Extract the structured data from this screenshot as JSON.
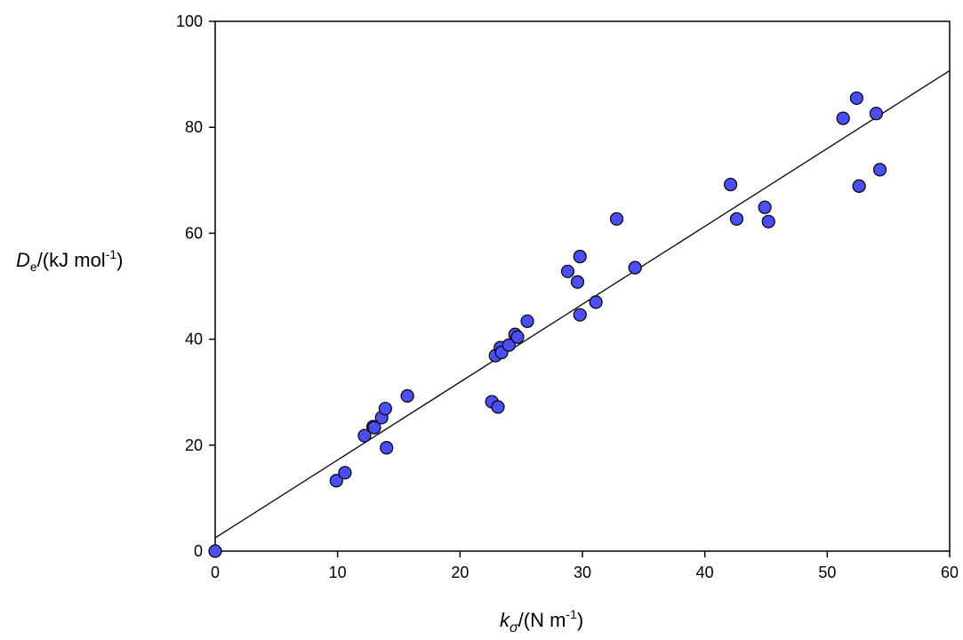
{
  "chart_data": {
    "type": "scatter",
    "title": "",
    "xlabel": {
      "symbol": "k",
      "subscript": "σ",
      "unit": "/(N m",
      "superscript": "-1",
      "close": ")"
    },
    "ylabel": {
      "symbol": "D",
      "subscript": "e",
      "unit": "/(kJ mol",
      "superscript": "-1",
      "close": ")"
    },
    "xlim": [
      0,
      60
    ],
    "ylim": [
      0,
      100
    ],
    "xticks": [
      0,
      10,
      20,
      30,
      40,
      50,
      60
    ],
    "yticks": [
      0,
      20,
      40,
      60,
      80,
      100
    ],
    "grid": false,
    "marker_color": "#4b4ef0",
    "marker_edge_color": "#000000",
    "series": [
      {
        "points": [
          {
            "x": 0.0,
            "y": 0.0
          },
          {
            "x": 9.9,
            "y": 13.3
          },
          {
            "x": 10.6,
            "y": 14.8
          },
          {
            "x": 12.2,
            "y": 21.8
          },
          {
            "x": 12.9,
            "y": 23.5
          },
          {
            "x": 13.0,
            "y": 23.3
          },
          {
            "x": 13.6,
            "y": 25.2
          },
          {
            "x": 13.9,
            "y": 26.9
          },
          {
            "x": 14.0,
            "y": 19.5
          },
          {
            "x": 15.7,
            "y": 29.3
          },
          {
            "x": 22.6,
            "y": 28.2
          },
          {
            "x": 22.9,
            "y": 36.9
          },
          {
            "x": 23.1,
            "y": 27.2
          },
          {
            "x": 23.3,
            "y": 38.4
          },
          {
            "x": 23.4,
            "y": 37.5
          },
          {
            "x": 24.0,
            "y": 38.9
          },
          {
            "x": 24.5,
            "y": 40.9
          },
          {
            "x": 24.7,
            "y": 40.4
          },
          {
            "x": 25.5,
            "y": 43.4
          },
          {
            "x": 28.8,
            "y": 52.8
          },
          {
            "x": 29.6,
            "y": 50.8
          },
          {
            "x": 29.8,
            "y": 55.6
          },
          {
            "x": 29.8,
            "y": 44.6
          },
          {
            "x": 31.1,
            "y": 47.0
          },
          {
            "x": 32.8,
            "y": 62.7
          },
          {
            "x": 34.3,
            "y": 53.5
          },
          {
            "x": 42.1,
            "y": 69.2
          },
          {
            "x": 42.6,
            "y": 62.7
          },
          {
            "x": 44.9,
            "y": 64.9
          },
          {
            "x": 45.2,
            "y": 62.2
          },
          {
            "x": 51.3,
            "y": 81.7
          },
          {
            "x": 52.4,
            "y": 85.5
          },
          {
            "x": 52.6,
            "y": 68.9
          },
          {
            "x": 54.0,
            "y": 82.6
          },
          {
            "x": 54.3,
            "y": 72.0
          }
        ]
      }
    ],
    "fit_line": {
      "x": [
        0,
        60
      ],
      "y": [
        2.5,
        90.7
      ]
    }
  }
}
